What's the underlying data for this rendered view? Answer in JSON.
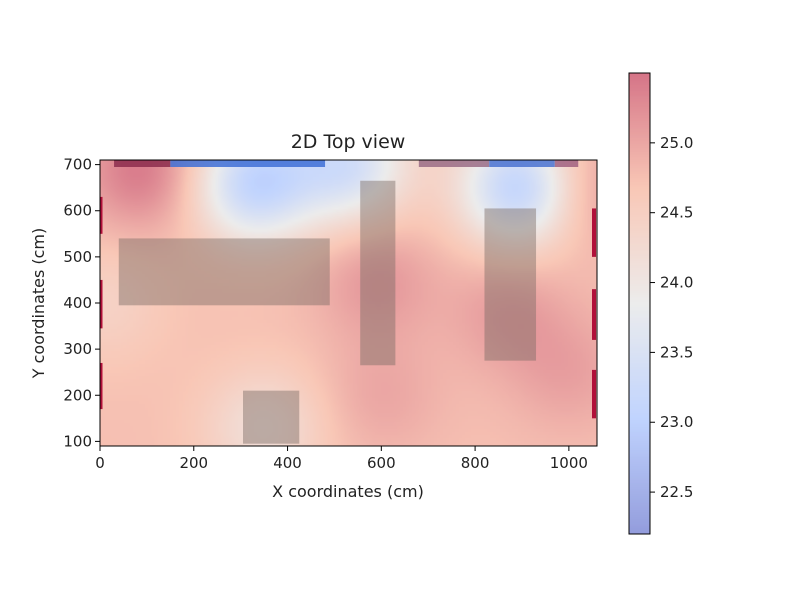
{
  "chart_data": {
    "type": "heatmap",
    "title": "2D Top view",
    "xlabel": "X coordinates (cm)",
    "ylabel": "Y coordinates (cm)",
    "xlim": [
      0,
      1060
    ],
    "ylim": [
      90,
      710
    ],
    "xticks": [
      0,
      200,
      400,
      600,
      800,
      1000
    ],
    "yticks": [
      100,
      200,
      300,
      400,
      500,
      600,
      700
    ],
    "colorbar": {
      "cmap": "coolwarm",
      "vmin": 22.2,
      "vmax": 25.5,
      "ticks": [
        22.5,
        23.0,
        23.5,
        24.0,
        24.5,
        25.0
      ],
      "tick_labels": [
        "22.5",
        "23.0",
        "23.5",
        "24.0",
        "24.5",
        "25.0"
      ]
    },
    "base_temperature": 24.75,
    "hot_spots": [
      {
        "x": 90,
        "y": 690,
        "temp": 25.45
      },
      {
        "x": 1010,
        "y": 650,
        "temp": 25.35
      },
      {
        "x": 590,
        "y": 450,
        "temp": 25.15
      },
      {
        "x": 870,
        "y": 380,
        "temp": 25.1
      },
      {
        "x": 1000,
        "y": 250,
        "temp": 25.05
      },
      {
        "x": 600,
        "y": 200,
        "temp": 25.0
      }
    ],
    "cold_spots": [
      {
        "x": 330,
        "y": 660,
        "temp": 23.1
      },
      {
        "x": 530,
        "y": 700,
        "temp": 23.4
      },
      {
        "x": 900,
        "y": 650,
        "temp": 22.9
      },
      {
        "x": 350,
        "y": 130,
        "temp": 24.15
      },
      {
        "x": 10,
        "y": 400,
        "temp": 24.45
      }
    ],
    "obstacles": [
      {
        "x0": 40,
        "x1": 490,
        "y0": 395,
        "y1": 540
      },
      {
        "x0": 555,
        "x1": 630,
        "y0": 265,
        "y1": 665
      },
      {
        "x0": 820,
        "x1": 930,
        "y0": 275,
        "y1": 605
      },
      {
        "x0": 305,
        "x1": 425,
        "y0": 95,
        "y1": 210
      }
    ],
    "top_vents": [
      {
        "x0": 30,
        "x1": 150,
        "color": "#8c2d4e"
      },
      {
        "x0": 150,
        "x1": 480,
        "color": "#3e6fd6"
      },
      {
        "x0": 680,
        "x1": 830,
        "color": "#9a6c86"
      },
      {
        "x0": 830,
        "x1": 970,
        "color": "#4a72d0"
      },
      {
        "x0": 970,
        "x1": 1020,
        "color": "#a06080"
      }
    ],
    "left_marks": [
      {
        "y0": 550,
        "y1": 630
      },
      {
        "y0": 345,
        "y1": 450
      },
      {
        "y0": 170,
        "y1": 270
      }
    ],
    "right_marks": [
      {
        "y0": 500,
        "y1": 605
      },
      {
        "y0": 320,
        "y1": 430
      },
      {
        "y0": 150,
        "y1": 255
      }
    ]
  }
}
